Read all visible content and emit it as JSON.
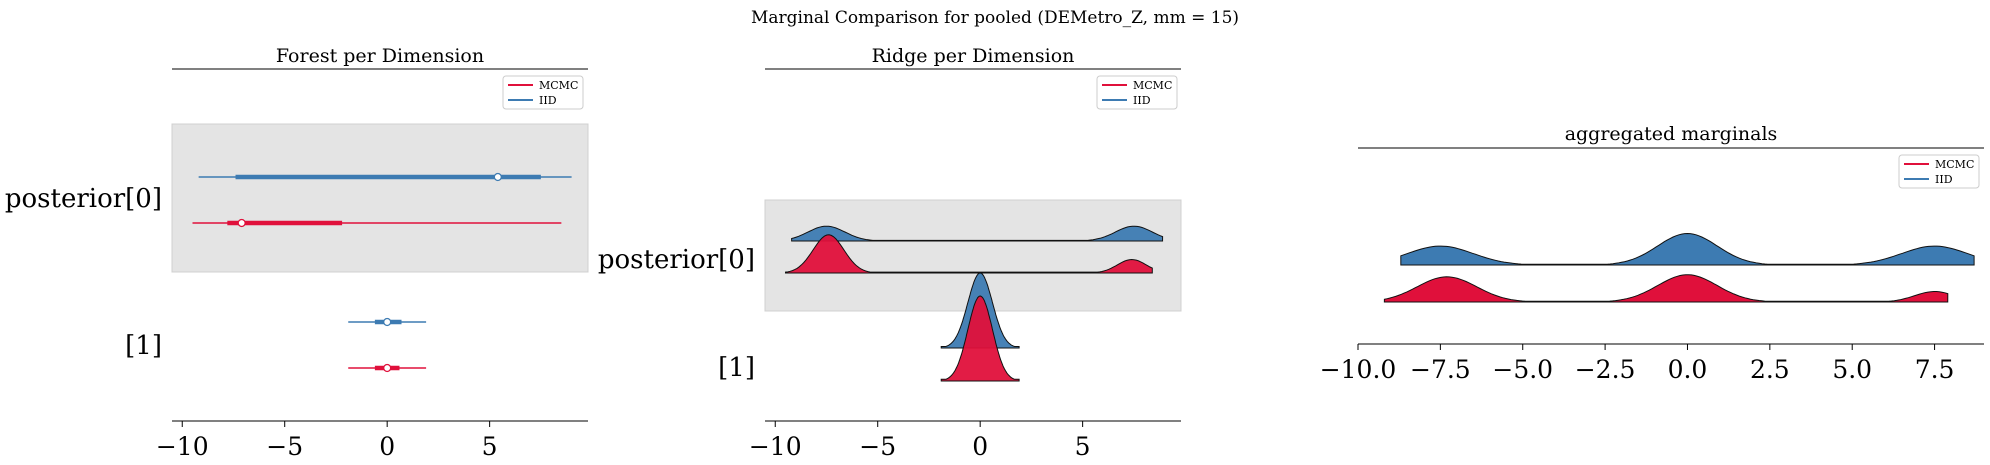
{
  "figure": {
    "suptitle": "Marginal Comparison for pooled (DEMetro_Z, mm = 15)"
  },
  "colors": {
    "mcmc": "#e0103b",
    "iid": "#3d7bb2",
    "band": "#e4e4e4"
  },
  "chart_data": [
    {
      "type": "forest",
      "title": "Forest per Dimension",
      "xlim": [
        -10.5,
        9.8
      ],
      "xticks": [
        -10,
        -5,
        0,
        5
      ],
      "xtick_labels": [
        "−10",
        "−5",
        "0",
        "5"
      ],
      "ylabels": [
        "posterior[0]",
        "[1]"
      ],
      "legend": {
        "placement": "top-right",
        "entries": [
          "MCMC",
          "IID"
        ]
      },
      "rows": [
        {
          "dim": "posterior[0]",
          "series": "IID",
          "hdi94": [
            -9.2,
            9.0
          ],
          "iqr": [
            -7.4,
            7.5
          ],
          "point": 5.4
        },
        {
          "dim": "posterior[0]",
          "series": "MCMC",
          "hdi94": [
            -9.5,
            8.5
          ],
          "iqr": [
            -7.8,
            -2.2
          ],
          "point": -7.1
        },
        {
          "dim": "[1]",
          "series": "IID",
          "hdi94": [
            -1.9,
            1.9
          ],
          "iqr": [
            -0.6,
            0.7
          ],
          "point": 0.0
        },
        {
          "dim": "[1]",
          "series": "MCMC",
          "hdi94": [
            -1.9,
            1.9
          ],
          "iqr": [
            -0.6,
            0.6
          ],
          "point": 0.0
        }
      ]
    },
    {
      "type": "ridge",
      "title": "Ridge per Dimension",
      "xlim": [
        -10.5,
        9.8
      ],
      "xticks": [
        -10,
        -5,
        0,
        5
      ],
      "xtick_labels": [
        "−10",
        "−5",
        "0",
        "5"
      ],
      "ylabels": [
        "posterior[0]",
        "[1]"
      ],
      "legend": {
        "placement": "top-right",
        "entries": [
          "MCMC",
          "IID"
        ]
      },
      "ridges": [
        {
          "dim": "posterior[0]",
          "series": "IID",
          "range": [
            -9.2,
            8.9
          ],
          "modes": [
            [
              -7.5,
              0.53,
              0.9
            ],
            [
              7.5,
              0.53,
              0.9
            ]
          ],
          "height": 28
        },
        {
          "dim": "posterior[0]",
          "series": "MCMC",
          "range": [
            -9.5,
            8.4
          ],
          "modes": [
            [
              -7.4,
              0.85,
              0.75
            ],
            [
              7.4,
              0.3,
              0.7
            ]
          ],
          "height": 45
        },
        {
          "dim": "[1]",
          "series": "IID",
          "range": [
            -1.9,
            1.9
          ],
          "modes": [
            [
              0.0,
              1.0,
              0.6
            ]
          ],
          "height": 75
        },
        {
          "dim": "[1]",
          "series": "MCMC",
          "range": [
            -1.9,
            1.9
          ],
          "modes": [
            [
              0.0,
              1.0,
              0.6
            ]
          ],
          "height": 85
        }
      ]
    },
    {
      "type": "area",
      "title": "aggregated marginals",
      "xlim": [
        -10.0,
        9.0
      ],
      "xticks": [
        -10.0,
        -7.5,
        -5.0,
        -2.5,
        0.0,
        2.5,
        5.0,
        7.5
      ],
      "xtick_labels": [
        "−10.0",
        "−7.5",
        "−5.0",
        "−2.5",
        "0.0",
        "2.5",
        "5.0",
        "7.5"
      ],
      "legend": {
        "placement": "top-right",
        "entries": [
          "MCMC",
          "IID"
        ]
      },
      "densities": [
        {
          "series": "IID",
          "range": [
            -8.7,
            8.7
          ],
          "modes": [
            [
              -7.5,
              0.45,
              1.0
            ],
            [
              0.0,
              0.75,
              0.9
            ],
            [
              7.5,
              0.45,
              1.0
            ]
          ]
        },
        {
          "series": "MCMC",
          "range": [
            -9.2,
            7.9
          ],
          "modes": [
            [
              -7.3,
              0.6,
              0.9
            ],
            [
              0.0,
              0.65,
              0.9
            ],
            [
              7.5,
              0.25,
              0.6
            ]
          ]
        }
      ]
    }
  ]
}
